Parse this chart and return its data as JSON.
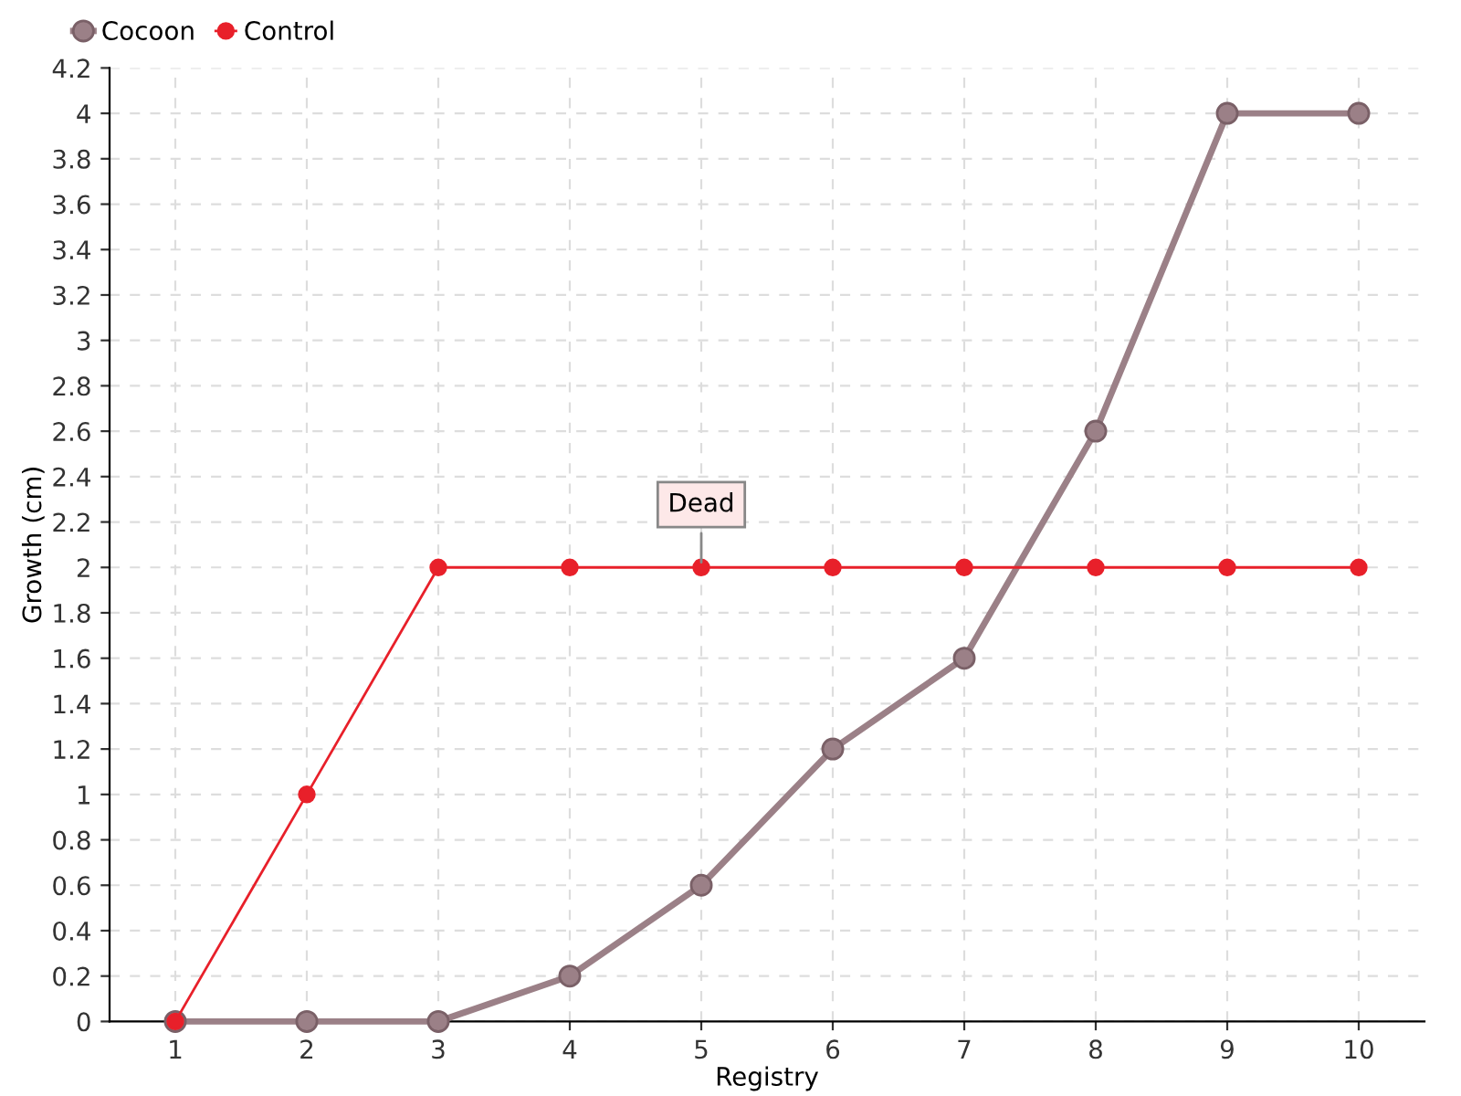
{
  "chart_data": {
    "type": "line",
    "xlabel": "Registry",
    "ylabel": "Growth (cm)",
    "categories": [
      "1",
      "2",
      "3",
      "4",
      "5",
      "6",
      "7",
      "8",
      "9",
      "10"
    ],
    "series": [
      {
        "name": "Cocoon",
        "color": "#9b8087",
        "values": [
          0,
          0,
          0,
          0.2,
          0.6,
          1.2,
          1.6,
          2.6,
          4,
          4
        ]
      },
      {
        "name": "Control",
        "color": "#e8202a",
        "values": [
          0,
          1,
          2,
          2,
          2,
          2,
          2,
          2,
          2,
          2
        ]
      }
    ],
    "ylim": [
      0,
      4.2
    ],
    "yticks": [
      0,
      0.2,
      0.4,
      0.6,
      0.8,
      1,
      1.2,
      1.4,
      1.6,
      1.8,
      2,
      2.2,
      2.4,
      2.6,
      2.8,
      3,
      3.2,
      3.4,
      3.6,
      3.8,
      4,
      4.2
    ],
    "annotations": [
      {
        "text": "Dead",
        "x": "5",
        "y": 2
      }
    ],
    "grid": true,
    "legend": "top left",
    "marker": "circle",
    "line_style": "solid"
  }
}
